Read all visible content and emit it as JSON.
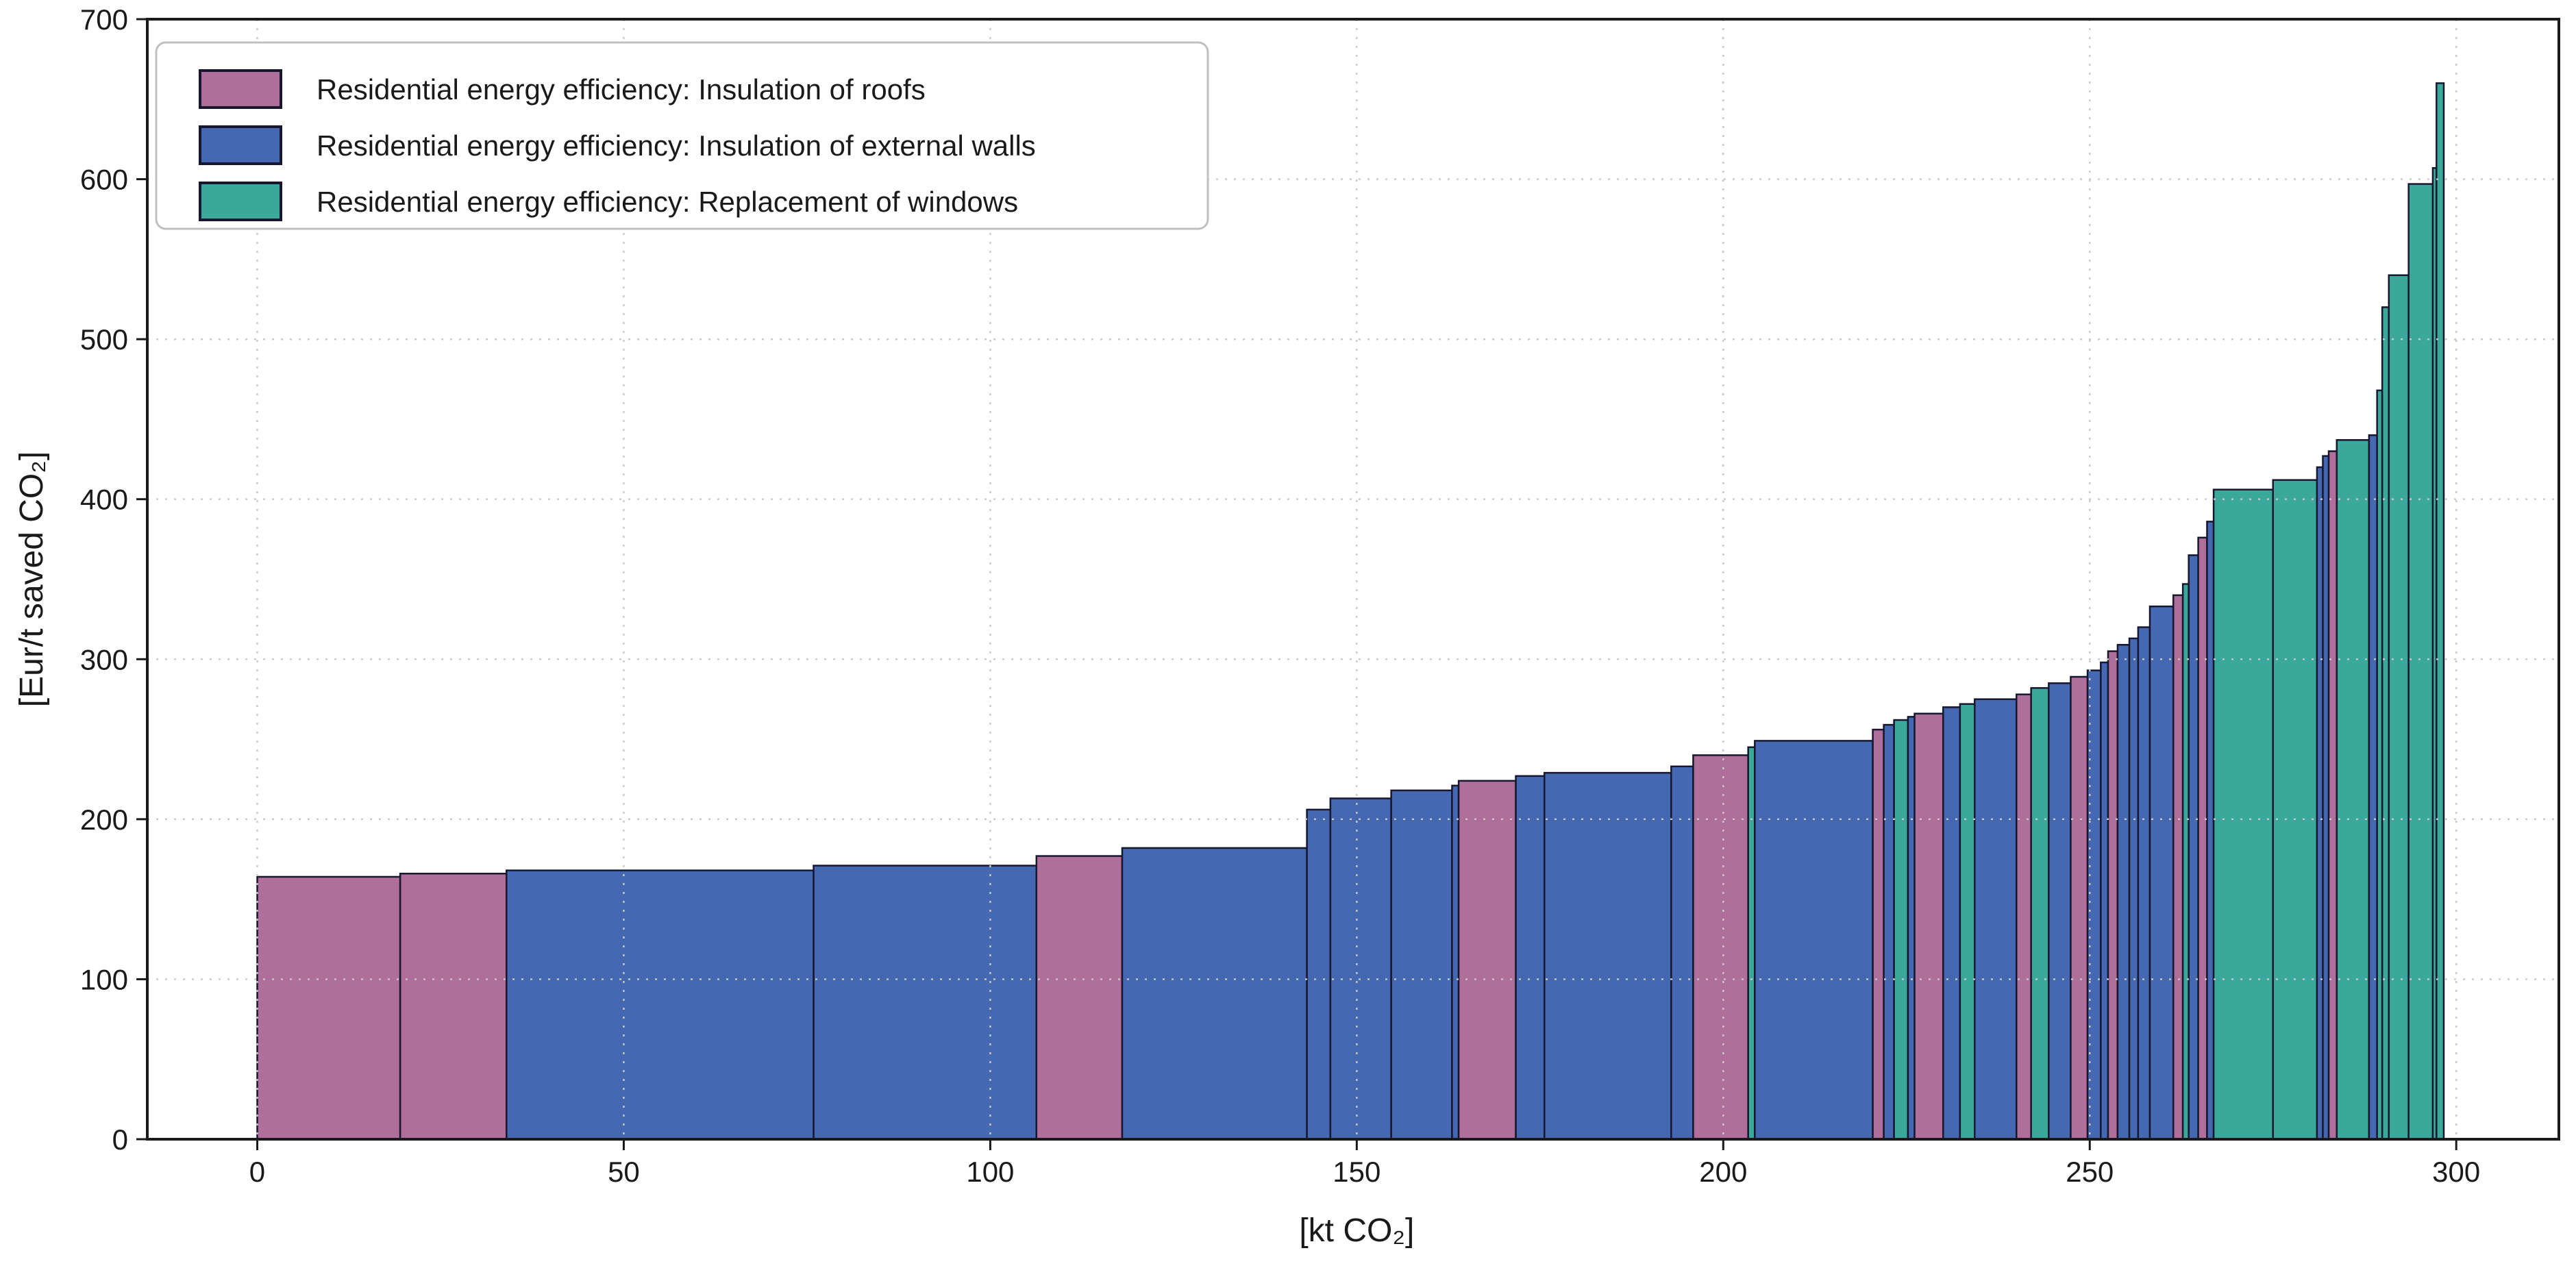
{
  "figure": {
    "background": "#ffffff",
    "plot_border_color": "#1a1a1a",
    "grid_color": "#c9c9c9",
    "text_color": "#1a1a1a"
  },
  "chart_data": {
    "type": "bar",
    "variant": "marginal-abatement-cost-curve (variable-width step bars, sorted ascending)",
    "title": "",
    "xlabel": "[kt CO₂]",
    "ylabel": "[Eur/t saved CO₂]",
    "x_unit": "kt CO2 saved",
    "y_unit": "Eur per t saved CO2",
    "xlim": [
      -15,
      314
    ],
    "ylim": [
      0,
      700
    ],
    "x_ticks": [
      0,
      50,
      100,
      150,
      200,
      250,
      300
    ],
    "y_ticks": [
      0,
      100,
      200,
      300,
      400,
      500,
      600,
      700
    ],
    "grid": {
      "style": "dotted",
      "drawn_above_bars": true,
      "x_interval": 50,
      "y_interval": 100
    },
    "legend_position": "upper-left",
    "bar_edge_color": "#17172f",
    "series": [
      {
        "id": "roofs",
        "label": "Residential energy efficiency: Insulation of roofs",
        "color": "#b06f9b"
      },
      {
        "id": "walls",
        "label": "Residential energy efficiency: Insulation of external walls",
        "color": "#4468b1"
      },
      {
        "id": "windows",
        "label": "Residential energy efficiency: Replacement of windows",
        "color": "#3aa89b"
      }
    ],
    "bars": [
      {
        "x0": 0.0,
        "x1": 19.5,
        "y": 164,
        "series": "roofs"
      },
      {
        "x0": 19.5,
        "x1": 34.0,
        "y": 166,
        "series": "roofs"
      },
      {
        "x0": 34.0,
        "x1": 75.9,
        "y": 168,
        "series": "walls"
      },
      {
        "x0": 75.9,
        "x1": 106.3,
        "y": 171,
        "series": "walls"
      },
      {
        "x0": 106.3,
        "x1": 118.0,
        "y": 177,
        "series": "roofs"
      },
      {
        "x0": 118.0,
        "x1": 143.2,
        "y": 182,
        "series": "walls"
      },
      {
        "x0": 143.2,
        "x1": 146.4,
        "y": 206,
        "series": "walls"
      },
      {
        "x0": 146.4,
        "x1": 154.7,
        "y": 213,
        "series": "walls"
      },
      {
        "x0": 154.7,
        "x1": 163.0,
        "y": 218,
        "series": "walls"
      },
      {
        "x0": 163.0,
        "x1": 163.9,
        "y": 221,
        "series": "walls"
      },
      {
        "x0": 163.9,
        "x1": 171.7,
        "y": 224,
        "series": "roofs"
      },
      {
        "x0": 171.7,
        "x1": 175.6,
        "y": 227,
        "series": "walls"
      },
      {
        "x0": 175.6,
        "x1": 192.9,
        "y": 229,
        "series": "walls"
      },
      {
        "x0": 192.9,
        "x1": 195.9,
        "y": 233,
        "series": "walls"
      },
      {
        "x0": 195.9,
        "x1": 203.4,
        "y": 240,
        "series": "roofs"
      },
      {
        "x0": 203.4,
        "x1": 204.3,
        "y": 245,
        "series": "windows"
      },
      {
        "x0": 204.3,
        "x1": 220.4,
        "y": 249,
        "series": "walls"
      },
      {
        "x0": 220.4,
        "x1": 221.9,
        "y": 256,
        "series": "roofs"
      },
      {
        "x0": 221.9,
        "x1": 223.3,
        "y": 259,
        "series": "walls"
      },
      {
        "x0": 223.3,
        "x1": 225.2,
        "y": 262,
        "series": "windows"
      },
      {
        "x0": 225.2,
        "x1": 226.1,
        "y": 264,
        "series": "walls"
      },
      {
        "x0": 226.1,
        "x1": 230.0,
        "y": 266,
        "series": "roofs"
      },
      {
        "x0": 230.0,
        "x1": 232.3,
        "y": 270,
        "series": "walls"
      },
      {
        "x0": 232.3,
        "x1": 234.3,
        "y": 272,
        "series": "windows"
      },
      {
        "x0": 234.3,
        "x1": 240.0,
        "y": 275,
        "series": "walls"
      },
      {
        "x0": 240.0,
        "x1": 242.0,
        "y": 278,
        "series": "roofs"
      },
      {
        "x0": 242.0,
        "x1": 244.4,
        "y": 282,
        "series": "windows"
      },
      {
        "x0": 244.4,
        "x1": 247.4,
        "y": 285,
        "series": "walls"
      },
      {
        "x0": 247.4,
        "x1": 249.7,
        "y": 289,
        "series": "roofs"
      },
      {
        "x0": 249.7,
        "x1": 251.5,
        "y": 293,
        "series": "walls"
      },
      {
        "x0": 251.5,
        "x1": 252.5,
        "y": 298,
        "series": "walls"
      },
      {
        "x0": 252.5,
        "x1": 253.8,
        "y": 305,
        "series": "roofs"
      },
      {
        "x0": 253.8,
        "x1": 255.4,
        "y": 309,
        "series": "walls"
      },
      {
        "x0": 255.4,
        "x1": 256.6,
        "y": 313,
        "series": "walls"
      },
      {
        "x0": 256.6,
        "x1": 258.2,
        "y": 320,
        "series": "walls"
      },
      {
        "x0": 258.2,
        "x1": 261.4,
        "y": 333,
        "series": "walls"
      },
      {
        "x0": 261.4,
        "x1": 262.7,
        "y": 340,
        "series": "roofs"
      },
      {
        "x0": 262.7,
        "x1": 263.5,
        "y": 347,
        "series": "windows"
      },
      {
        "x0": 263.5,
        "x1": 264.8,
        "y": 365,
        "series": "walls"
      },
      {
        "x0": 264.8,
        "x1": 266.0,
        "y": 376,
        "series": "roofs"
      },
      {
        "x0": 266.0,
        "x1": 266.9,
        "y": 386,
        "series": "walls"
      },
      {
        "x0": 266.9,
        "x1": 275.0,
        "y": 406,
        "series": "windows"
      },
      {
        "x0": 275.0,
        "x1": 281.0,
        "y": 412,
        "series": "windows"
      },
      {
        "x0": 281.0,
        "x1": 281.8,
        "y": 420,
        "series": "walls"
      },
      {
        "x0": 281.8,
        "x1": 282.6,
        "y": 427,
        "series": "walls"
      },
      {
        "x0": 282.6,
        "x1": 283.7,
        "y": 430,
        "series": "roofs"
      },
      {
        "x0": 283.7,
        "x1": 288.1,
        "y": 437,
        "series": "windows"
      },
      {
        "x0": 288.1,
        "x1": 289.2,
        "y": 440,
        "series": "walls"
      },
      {
        "x0": 289.2,
        "x1": 289.9,
        "y": 468,
        "series": "windows"
      },
      {
        "x0": 289.9,
        "x1": 290.8,
        "y": 520,
        "series": "windows"
      },
      {
        "x0": 290.8,
        "x1": 293.5,
        "y": 540,
        "series": "windows"
      },
      {
        "x0": 293.5,
        "x1": 296.8,
        "y": 597,
        "series": "windows"
      },
      {
        "x0": 296.8,
        "x1": 297.3,
        "y": 607,
        "series": "windows"
      },
      {
        "x0": 297.3,
        "x1": 298.3,
        "y": 660,
        "series": "windows"
      }
    ]
  }
}
